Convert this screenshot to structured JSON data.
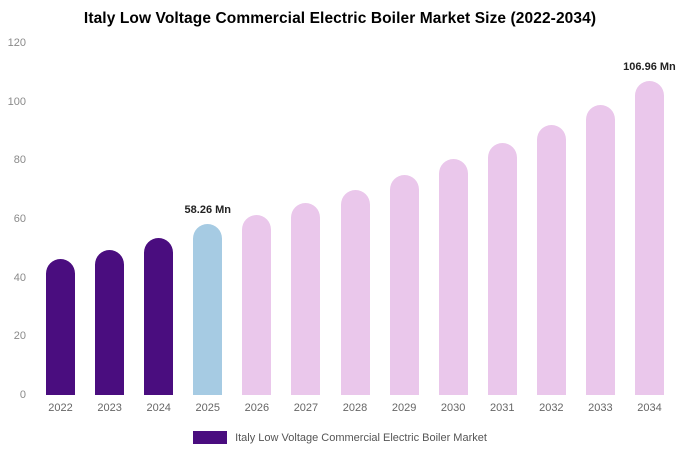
{
  "chart_data": {
    "type": "bar",
    "title": "Italy Low Voltage Commercial Electric Boiler Market Size (2022-2034)",
    "categories": [
      "2022",
      "2023",
      "2024",
      "2025",
      "2026",
      "2027",
      "2028",
      "2029",
      "2030",
      "2031",
      "2032",
      "2033",
      "2034"
    ],
    "values": [
      46.5,
      49.5,
      53.5,
      58.26,
      61.5,
      65.5,
      70,
      75,
      80.5,
      86,
      92,
      99,
      106.96
    ],
    "ylim": [
      0,
      120
    ],
    "yticks": [
      0,
      20,
      40,
      60,
      80,
      100,
      120
    ],
    "xlabel": "",
    "ylabel": "",
    "grid": false,
    "legend_position": "bottom",
    "legend": "Italy Low Voltage Commercial Electric Boiler Market",
    "colors": {
      "past": "#4a0d7f",
      "current": "#a6cbe3",
      "forecast": "#eac7eb"
    },
    "bar_roles": [
      "past",
      "past",
      "past",
      "current",
      "forecast",
      "forecast",
      "forecast",
      "forecast",
      "forecast",
      "forecast",
      "forecast",
      "forecast",
      "forecast"
    ],
    "annotations": [
      {
        "index": 3,
        "text": "58.26 Mn"
      },
      {
        "index": 12,
        "text": "106.96 Mn"
      }
    ]
  }
}
